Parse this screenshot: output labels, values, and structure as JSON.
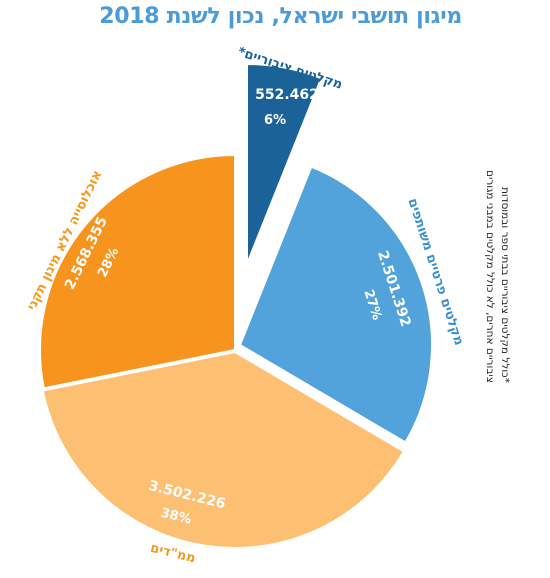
{
  "chart_data": {
    "type": "pie",
    "title": "מיגון תושבי ישראל, נכון לשנת 2018",
    "slices": [
      {
        "label": "מקלטים ציבוריים*",
        "value": 552462,
        "value_text": "552.462",
        "percent_text": "6%",
        "color": "#1B6299",
        "label_color": "#1B6299",
        "exploded": true
      },
      {
        "label": "מקלטים פרטיים משותפים",
        "value": 2501392,
        "value_text": "2.501.392",
        "percent_text": "27%",
        "color": "#52A3DC",
        "label_color": "#3A8FD0",
        "exploded": false
      },
      {
        "label": "ממ\"דים",
        "value": 3502226,
        "value_text": "3.502.226",
        "percent_text": "38%",
        "color": "#FDBF72",
        "label_color": "#F39A1E",
        "exploded": false
      },
      {
        "label": "אוכלוסייה ללא מיגון תקני",
        "value": 2568355,
        "value_text": "2.568.355",
        "percent_text": "28%",
        "color": "#F7941D",
        "label_color": "#F39A1E",
        "exploded": false
      }
    ]
  },
  "footnote": [
    "*כולל מקלטים ציבוריים בבתי ספר ובמוסדות",
    "ציבוריים אחרים, לא כולל מקלטים במבני מגורים"
  ]
}
